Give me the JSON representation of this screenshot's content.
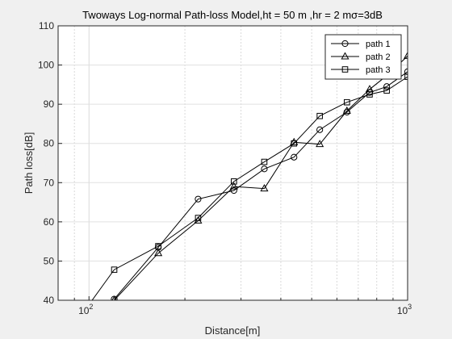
{
  "chart_data": {
    "type": "line",
    "title": "Twoways Log-normal Path-loss Model,ht = 50 m ,hr = 2 mσ=3dB",
    "xlabel": "Distance[m]",
    "ylabel": "Path loss[dB]",
    "xscale": "log",
    "xlim": [
      80,
      1000
    ],
    "ylim": [
      40,
      110
    ],
    "xticks": [
      {
        "value": 100,
        "base": "10",
        "exp": "2"
      },
      {
        "value": 1000,
        "base": "10",
        "exp": "3"
      }
    ],
    "yticks": [
      40,
      50,
      60,
      70,
      80,
      90,
      100,
      110
    ],
    "grid": true,
    "legend_position": "top-right",
    "series": [
      {
        "name": "path 1",
        "marker": "circle",
        "x": [
          120,
          165,
          220,
          285,
          355,
          440,
          530,
          645,
          760,
          860,
          1000
        ],
        "y": [
          40.3,
          53.5,
          65.8,
          68.0,
          73.5,
          76.5,
          83.5,
          88.0,
          93.0,
          94.5,
          98.3
        ]
      },
      {
        "name": "path 2",
        "marker": "triangle",
        "x": [
          120,
          165,
          220,
          285,
          355,
          440,
          530,
          645,
          760,
          860,
          1000
        ],
        "y": [
          40.0,
          52.0,
          60.3,
          69.0,
          68.5,
          80.3,
          79.8,
          88.3,
          93.8,
          97.3,
          102.3
        ]
      },
      {
        "name": "path 3",
        "marker": "square",
        "x": [
          80,
          120,
          165,
          220,
          285,
          355,
          440,
          530,
          645,
          760,
          860,
          1000
        ],
        "y": [
          28.0,
          47.8,
          53.8,
          61.0,
          70.3,
          75.3,
          80.0,
          87.0,
          90.5,
          92.5,
          93.5,
          97.0
        ]
      }
    ]
  }
}
